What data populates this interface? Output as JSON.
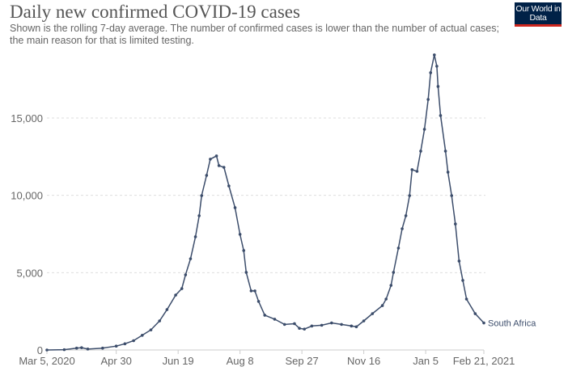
{
  "header": {
    "title": "Daily new confirmed COVID-19 cases",
    "subtitle": "Shown is the rolling 7-day average. The number of confirmed cases is lower than the number of actual cases; the main reason for that is limited testing.",
    "logo_text": "Our World in Data"
  },
  "colors": {
    "line": "#3c4d6b",
    "grid": "#dddddd",
    "logo_bg": "#002147",
    "logo_accent": "#ce261e"
  },
  "chart_data": {
    "type": "line",
    "title": "Daily new confirmed COVID-19 cases",
    "xlabel": "",
    "ylabel": "",
    "xlim": [
      "2020-03-05",
      "2021-02-21"
    ],
    "ylim": [
      0,
      19500
    ],
    "grid": "horizontal dashed",
    "x_ticks": [
      {
        "date": "2020-03-05",
        "label": "Mar 5, 2020"
      },
      {
        "date": "2020-04-30",
        "label": "Apr 30"
      },
      {
        "date": "2020-06-19",
        "label": "Jun 19"
      },
      {
        "date": "2020-08-08",
        "label": "Aug 8"
      },
      {
        "date": "2020-09-27",
        "label": "Sep 27"
      },
      {
        "date": "2020-11-16",
        "label": "Nov 16"
      },
      {
        "date": "2021-01-05",
        "label": "Jan 5"
      },
      {
        "date": "2021-02-21",
        "label": "Feb 21, 2021"
      }
    ],
    "y_ticks": [
      {
        "value": 0,
        "label": "0"
      },
      {
        "value": 5000,
        "label": "5,000"
      },
      {
        "value": 10000,
        "label": "10,000"
      },
      {
        "value": 15000,
        "label": "15,000"
      }
    ],
    "series": [
      {
        "name": "South Africa",
        "points": [
          [
            "2020-03-05",
            0
          ],
          [
            "2020-03-19",
            20
          ],
          [
            "2020-03-29",
            120
          ],
          [
            "2020-04-02",
            150
          ],
          [
            "2020-04-07",
            60
          ],
          [
            "2020-04-19",
            120
          ],
          [
            "2020-04-30",
            250
          ],
          [
            "2020-05-07",
            400
          ],
          [
            "2020-05-14",
            600
          ],
          [
            "2020-05-21",
            950
          ],
          [
            "2020-05-28",
            1300
          ],
          [
            "2020-06-04",
            1880
          ],
          [
            "2020-06-10",
            2610
          ],
          [
            "2020-06-17",
            3550
          ],
          [
            "2020-06-22",
            3970
          ],
          [
            "2020-06-25",
            4860
          ],
          [
            "2020-06-29",
            5900
          ],
          [
            "2020-07-03",
            7320
          ],
          [
            "2020-07-06",
            8680
          ],
          [
            "2020-07-08",
            9980
          ],
          [
            "2020-07-12",
            11290
          ],
          [
            "2020-07-15",
            12340
          ],
          [
            "2020-07-20",
            12550
          ],
          [
            "2020-07-22",
            11920
          ],
          [
            "2020-07-26",
            11810
          ],
          [
            "2020-07-30",
            10610
          ],
          [
            "2020-08-04",
            9200
          ],
          [
            "2020-08-08",
            7480
          ],
          [
            "2020-08-11",
            6430
          ],
          [
            "2020-08-13",
            5020
          ],
          [
            "2020-08-17",
            3820
          ],
          [
            "2020-08-20",
            3820
          ],
          [
            "2020-08-23",
            3140
          ],
          [
            "2020-08-28",
            2250
          ],
          [
            "2020-09-05",
            1990
          ],
          [
            "2020-09-13",
            1650
          ],
          [
            "2020-09-21",
            1700
          ],
          [
            "2020-09-25",
            1400
          ],
          [
            "2020-09-29",
            1350
          ],
          [
            "2020-10-05",
            1550
          ],
          [
            "2020-10-13",
            1600
          ],
          [
            "2020-10-21",
            1750
          ],
          [
            "2020-10-29",
            1650
          ],
          [
            "2020-11-06",
            1550
          ],
          [
            "2020-11-10",
            1500
          ],
          [
            "2020-11-16",
            1880
          ],
          [
            "2020-11-23",
            2350
          ],
          [
            "2020-12-01",
            2870
          ],
          [
            "2020-12-04",
            3290
          ],
          [
            "2020-12-08",
            4180
          ],
          [
            "2020-12-10",
            5020
          ],
          [
            "2020-12-14",
            6590
          ],
          [
            "2020-12-17",
            7840
          ],
          [
            "2020-12-20",
            8680
          ],
          [
            "2020-12-23",
            9980
          ],
          [
            "2020-12-25",
            11660
          ],
          [
            "2020-12-29",
            11550
          ],
          [
            "2021-01-01",
            12860
          ],
          [
            "2021-01-04",
            14270
          ],
          [
            "2021-01-07",
            16200
          ],
          [
            "2021-01-09",
            17930
          ],
          [
            "2021-01-12",
            19080
          ],
          [
            "2021-01-14",
            18350
          ],
          [
            "2021-01-15",
            17040
          ],
          [
            "2021-01-17",
            15160
          ],
          [
            "2021-01-21",
            12860
          ],
          [
            "2021-01-23",
            11500
          ],
          [
            "2021-01-26",
            9980
          ],
          [
            "2021-01-29",
            8150
          ],
          [
            "2021-02-01",
            5750
          ],
          [
            "2021-02-04",
            4500
          ],
          [
            "2021-02-07",
            3290
          ],
          [
            "2021-02-14",
            2350
          ],
          [
            "2021-02-21",
            1750
          ]
        ]
      }
    ]
  }
}
